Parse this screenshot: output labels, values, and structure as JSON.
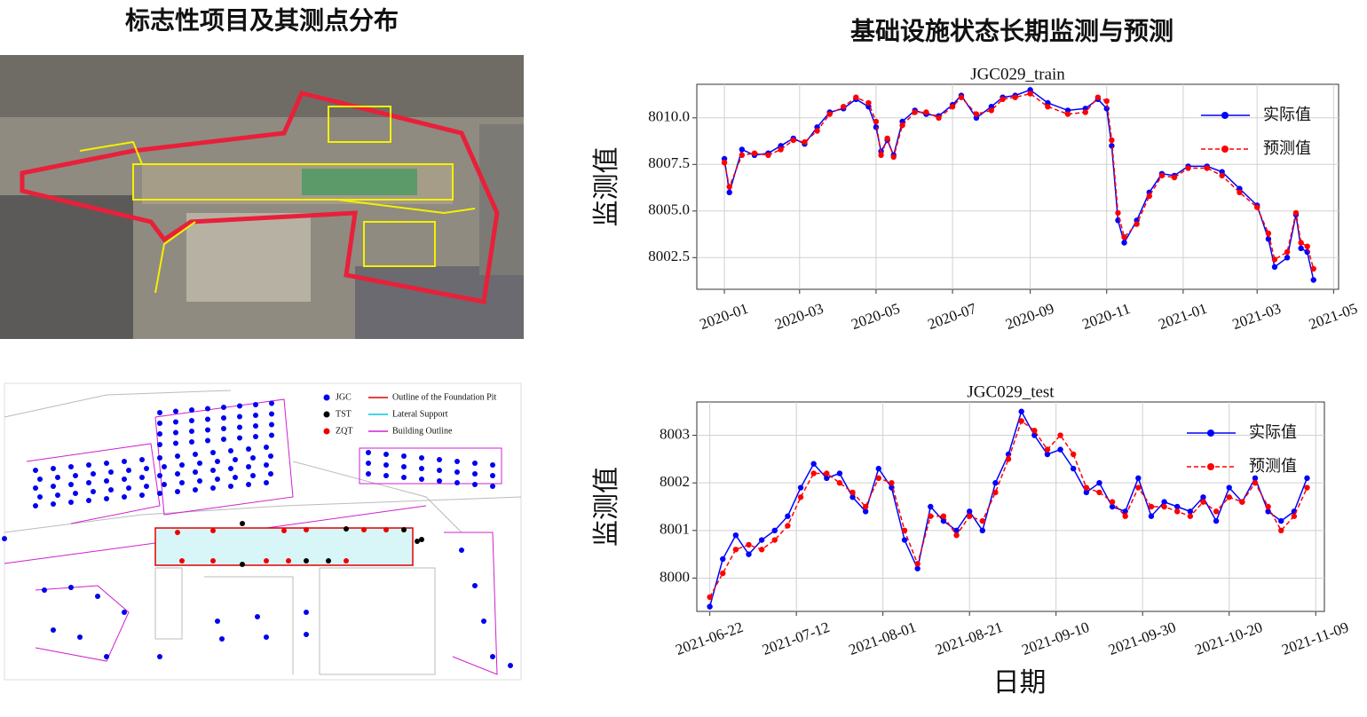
{
  "left_title": "标志性项目及其测点分布",
  "right_title": "基础设施状态长期监测与预测",
  "map_legend": [
    "JGC",
    "TST",
    "ZQT",
    "Outline of the Foundation Pit",
    "Lateral Support",
    "Building Outline"
  ],
  "chart_data": [
    {
      "type": "line",
      "title": "JGC029_train",
      "y_label": "监测值",
      "x": [
        "2020-01-01",
        "2020-01-05",
        "2020-01-15",
        "2020-01-25",
        "2020-02-05",
        "2020-02-15",
        "2020-02-25",
        "2020-03-05",
        "2020-03-15",
        "2020-03-25",
        "2020-04-05",
        "2020-04-15",
        "2020-04-25",
        "2020-05-01",
        "2020-05-05",
        "2020-05-10",
        "2020-05-15",
        "2020-05-22",
        "2020-06-01",
        "2020-06-10",
        "2020-06-20",
        "2020-07-01",
        "2020-07-08",
        "2020-07-20",
        "2020-08-01",
        "2020-08-10",
        "2020-08-20",
        "2020-09-01",
        "2020-09-15",
        "2020-10-01",
        "2020-10-15",
        "2020-10-25",
        "2020-11-01",
        "2020-11-05",
        "2020-11-10",
        "2020-11-15",
        "2020-11-25",
        "2020-12-05",
        "2020-12-15",
        "2020-12-25",
        "2021-01-05",
        "2021-01-20",
        "2021-02-01",
        "2021-02-15",
        "2021-03-01",
        "2021-03-10",
        "2021-03-15",
        "2021-03-25",
        "2021-04-01",
        "2021-04-05",
        "2021-04-10",
        "2021-04-15"
      ],
      "series": [
        {
          "name": "实际值",
          "color": "#0000ff",
          "values": [
            8007.8,
            8006.0,
            8008.3,
            8008.0,
            8008.1,
            8008.5,
            8008.9,
            8008.6,
            8009.5,
            8010.3,
            8010.5,
            8011.0,
            8010.6,
            8009.5,
            8008.2,
            8008.8,
            8008.0,
            8009.8,
            8010.4,
            8010.2,
            8010.1,
            8010.7,
            8011.2,
            8010.0,
            8010.6,
            8011.1,
            8011.2,
            8011.5,
            8010.8,
            8010.4,
            8010.5,
            8011.0,
            8010.5,
            8008.5,
            8004.5,
            8003.3,
            8004.5,
            8006.0,
            8007.0,
            8006.9,
            8007.4,
            8007.4,
            8007.1,
            8006.2,
            8005.3,
            8003.5,
            8002.0,
            8002.5,
            8004.8,
            8003.0,
            8002.8,
            8001.3
          ]
        },
        {
          "name": "预测值",
          "color": "#ff0000",
          "dashed": true,
          "values": [
            8007.6,
            8006.3,
            8008.0,
            8008.1,
            8008.0,
            8008.3,
            8008.8,
            8008.7,
            8009.3,
            8010.2,
            8010.6,
            8011.1,
            8010.8,
            8009.8,
            8008.0,
            8008.9,
            8007.9,
            8009.6,
            8010.3,
            8010.3,
            8010.0,
            8010.6,
            8011.1,
            8010.2,
            8010.4,
            8011.0,
            8011.1,
            8011.3,
            8010.6,
            8010.2,
            8010.3,
            8011.1,
            8010.9,
            8008.8,
            8004.9,
            8003.6,
            8004.3,
            8005.8,
            8006.9,
            8006.8,
            8007.3,
            8007.3,
            8006.9,
            8006.0,
            8005.2,
            8003.8,
            8002.4,
            8002.8,
            8004.9,
            8003.3,
            8003.1,
            8001.9
          ]
        }
      ],
      "xlim": [
        "2019-12-10",
        "2021-05-05"
      ],
      "xticks": [
        {
          "value": "2020-01-01",
          "label": "2020-01"
        },
        {
          "value": "2020-03-01",
          "label": "2020-03"
        },
        {
          "value": "2020-05-01",
          "label": "2020-05"
        },
        {
          "value": "2020-07-01",
          "label": "2020-07"
        },
        {
          "value": "2020-09-01",
          "label": "2020-09"
        },
        {
          "value": "2020-11-01",
          "label": "2020-11"
        },
        {
          "value": "2021-01-01",
          "label": "2021-01"
        },
        {
          "value": "2021-03-01",
          "label": "2021-03"
        },
        {
          "value": "2021-05-01",
          "label": "2021-05"
        }
      ],
      "ylim": [
        8000.8,
        8011.8
      ],
      "yticks": [
        8002.5,
        {
          "value": 8005,
          "label": "8005.0"
        },
        8007.5,
        {
          "value": 8010,
          "label": "8010.0"
        }
      ],
      "grid": true,
      "legend": "upper right"
    },
    {
      "type": "line",
      "title": "JGC029_test",
      "y_label": "监测值",
      "x_label": "日期",
      "x": [
        "2021-06-22",
        "2021-06-25",
        "2021-06-28",
        "2021-07-01",
        "2021-07-04",
        "2021-07-07",
        "2021-07-10",
        "2021-07-13",
        "2021-07-16",
        "2021-07-19",
        "2021-07-22",
        "2021-07-25",
        "2021-07-28",
        "2021-07-31",
        "2021-08-03",
        "2021-08-06",
        "2021-08-09",
        "2021-08-12",
        "2021-08-15",
        "2021-08-18",
        "2021-08-21",
        "2021-08-24",
        "2021-08-27",
        "2021-08-30",
        "2021-09-02",
        "2021-09-05",
        "2021-09-08",
        "2021-09-11",
        "2021-09-14",
        "2021-09-17",
        "2021-09-20",
        "2021-09-23",
        "2021-09-26",
        "2021-09-29",
        "2021-10-02",
        "2021-10-05",
        "2021-10-08",
        "2021-10-11",
        "2021-10-14",
        "2021-10-17",
        "2021-10-20",
        "2021-10-23",
        "2021-10-26",
        "2021-10-29",
        "2021-11-01",
        "2021-11-04",
        "2021-11-07"
      ],
      "series": [
        {
          "name": "实际值",
          "color": "#0000ff",
          "values": [
            7999.4,
            8000.4,
            8000.9,
            8000.5,
            8000.8,
            8001.0,
            8001.3,
            8001.9,
            8002.4,
            8002.1,
            8002.2,
            8001.7,
            8001.4,
            8002.3,
            8001.9,
            8000.8,
            8000.2,
            8001.5,
            8001.2,
            8001.0,
            8001.4,
            8001.0,
            8002.0,
            8002.6,
            8003.5,
            8003.0,
            8002.6,
            8002.7,
            8002.3,
            8001.8,
            8002.0,
            8001.5,
            8001.4,
            8002.1,
            8001.3,
            8001.6,
            8001.5,
            8001.4,
            8001.7,
            8001.2,
            8001.9,
            8001.6,
            8002.1,
            8001.4,
            8001.2,
            8001.4,
            8002.1
          ]
        },
        {
          "name": "预测值",
          "color": "#ff0000",
          "dashed": true,
          "values": [
            7999.6,
            8000.1,
            8000.6,
            8000.7,
            8000.6,
            8000.8,
            8001.1,
            8001.7,
            8002.2,
            8002.2,
            8002.0,
            8001.8,
            8001.5,
            8002.1,
            8002.0,
            8001.0,
            8000.3,
            8001.3,
            8001.3,
            8000.9,
            8001.3,
            8001.2,
            8001.8,
            8002.5,
            8003.3,
            8003.1,
            8002.7,
            8003.0,
            8002.6,
            8001.9,
            8001.8,
            8001.6,
            8001.3,
            8001.9,
            8001.5,
            8001.5,
            8001.4,
            8001.3,
            8001.6,
            8001.4,
            8001.7,
            8001.6,
            8002.0,
            8001.5,
            8001.0,
            8001.3,
            8001.9
          ]
        }
      ],
      "xlim": [
        "2021-06-19",
        "2021-11-11"
      ],
      "xticks": [
        {
          "value": "2021-06-22",
          "label": "2021-06-22"
        },
        {
          "value": "2021-07-12",
          "label": "2021-07-12"
        },
        {
          "value": "2021-08-01",
          "label": "2021-08-01"
        },
        {
          "value": "2021-08-21",
          "label": "2021-08-21"
        },
        {
          "value": "2021-09-10",
          "label": "2021-09-10"
        },
        {
          "value": "2021-09-30",
          "label": "2021-09-30"
        },
        {
          "value": "2021-10-20",
          "label": "2021-10-20"
        },
        {
          "value": "2021-11-09",
          "label": "2021-11-09"
        }
      ],
      "ylim": [
        7999.3,
        8003.7
      ],
      "yticks": [
        8000,
        8001,
        8002,
        8003
      ],
      "grid": true,
      "legend": "upper right"
    }
  ]
}
